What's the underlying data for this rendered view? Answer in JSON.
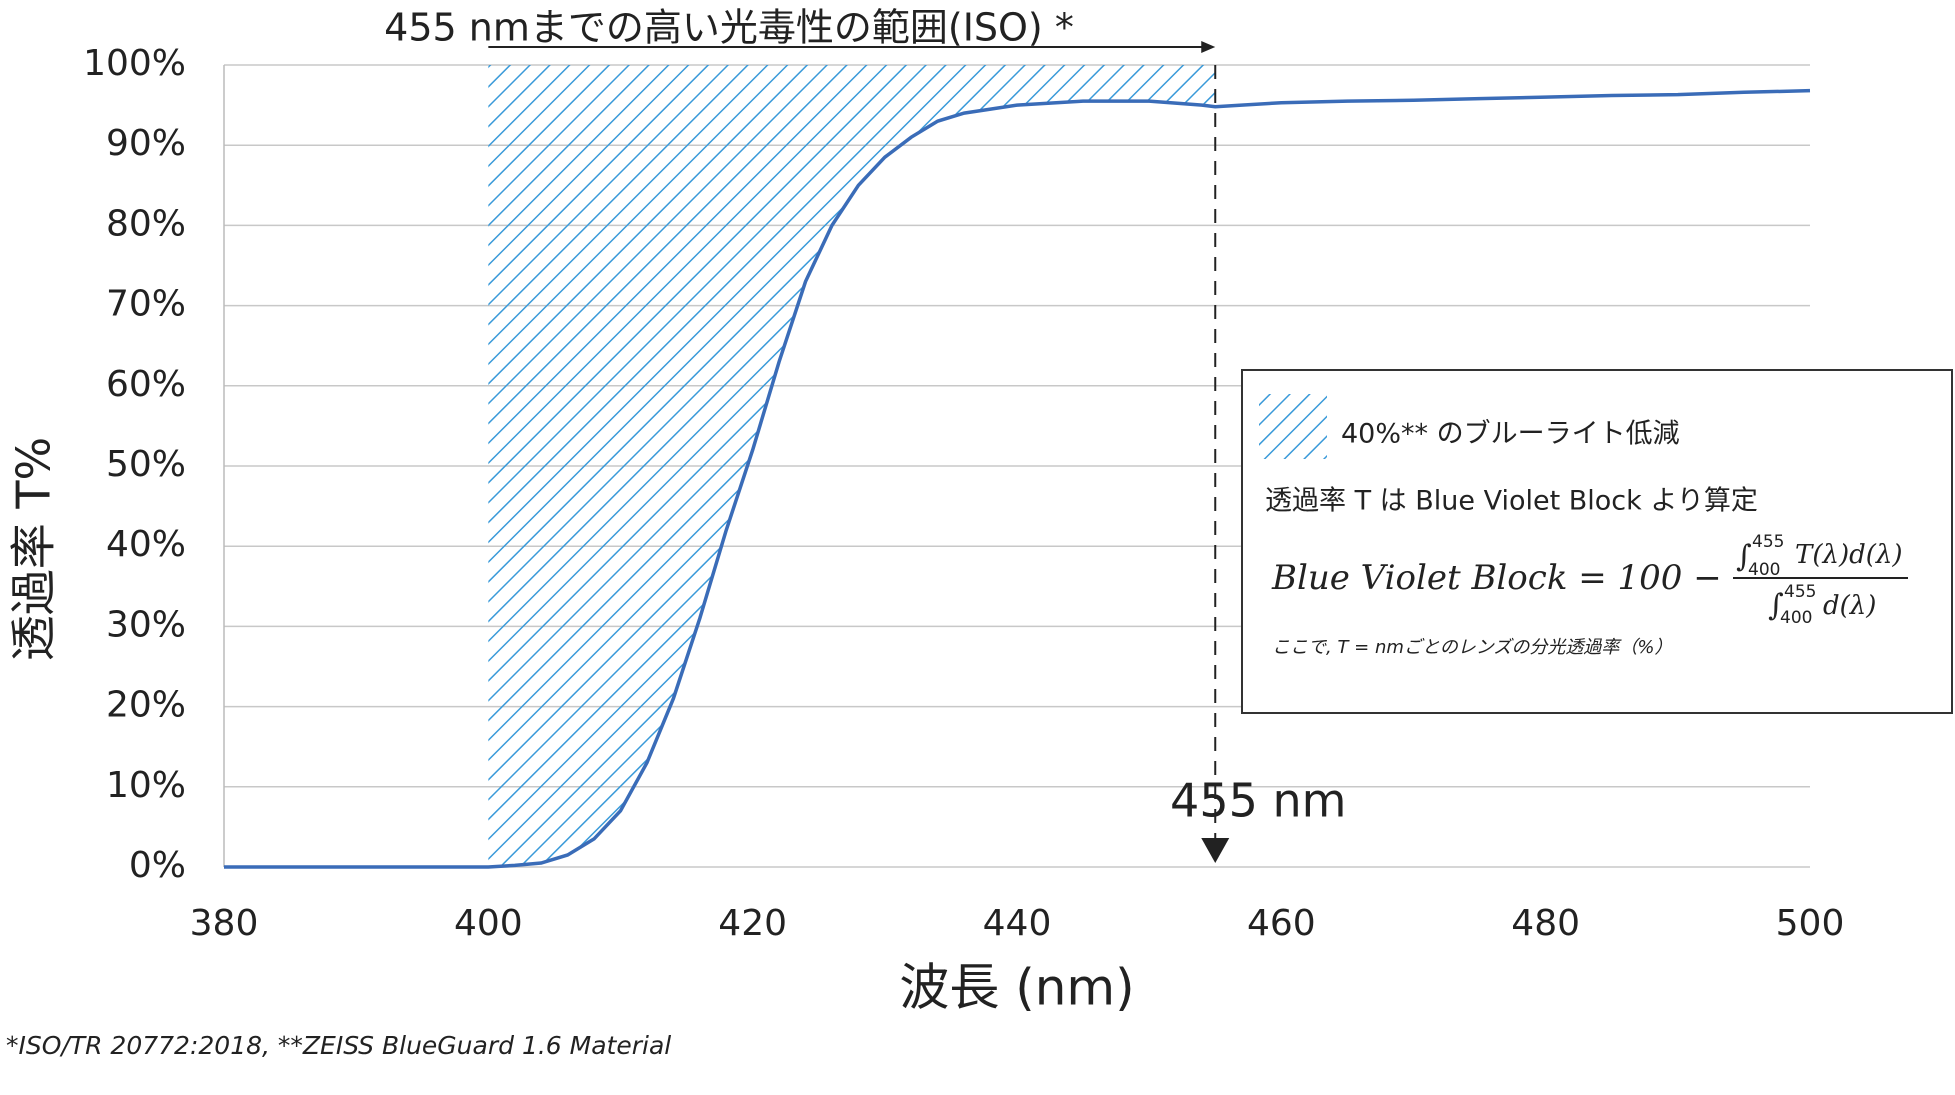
{
  "chart_data": {
    "type": "line",
    "title": "455 nmまでの高い光毒性の範囲(ISO) *",
    "xlabel": "波長 (nm)",
    "ylabel": "透過率 T%",
    "x": [
      380,
      385,
      390,
      395,
      400,
      402,
      404,
      406,
      408,
      410,
      412,
      414,
      416,
      418,
      420,
      422,
      424,
      426,
      428,
      430,
      432,
      434,
      436,
      438,
      440,
      445,
      450,
      454,
      455,
      457,
      460,
      465,
      470,
      475,
      480,
      485,
      490,
      495,
      500
    ],
    "values": [
      0,
      0,
      0,
      0,
      0,
      0.2,
      0.5,
      1.5,
      3.5,
      7,
      13,
      21,
      31,
      42,
      52,
      63,
      73,
      80,
      85,
      88.5,
      91,
      93,
      94,
      94.5,
      95,
      95.5,
      95.5,
      95,
      94.8,
      95,
      95.3,
      95.5,
      95.6,
      95.8,
      96,
      96.2,
      96.3,
      96.6,
      96.8
    ],
    "color": "#3a6cb8",
    "xlim": [
      380,
      500
    ],
    "ylim": [
      0,
      100
    ],
    "xticks": [
      380,
      400,
      420,
      440,
      460,
      480,
      500
    ],
    "yticks": [
      {
        "value": 0,
        "label": "0%"
      },
      {
        "value": 10,
        "label": "10%"
      },
      {
        "value": 20,
        "label": "20%"
      },
      {
        "value": 30,
        "label": "30%"
      },
      {
        "value": 40,
        "label": "40%"
      },
      {
        "value": 50,
        "label": "50%"
      },
      {
        "value": 60,
        "label": "60%"
      },
      {
        "value": 70,
        "label": "70%"
      },
      {
        "value": 80,
        "label": "80%"
      },
      {
        "value": 90,
        "label": "90%"
      },
      {
        "value": 100,
        "label": "100%"
      }
    ],
    "grid": true,
    "shade": {
      "from": 400,
      "to": 455,
      "color": "#3a9ad9",
      "label": "40%** のブルーライト低減"
    },
    "marker": {
      "x": 455,
      "label": "455 nm"
    },
    "formula": {
      "intro": "透過率 T は Blue Violet Block より算定",
      "lhs": "Blue Violet Block = 100 −",
      "integral": "∫",
      "upper": "455",
      "lower": "400",
      "num": "T(λ)d(λ)",
      "den": "d(λ)",
      "note": "ここで, T = nmごとのレンズの分光透過率（%）"
    },
    "footnote": "*ISO/TR 20772:2018, **ZEISS BlueGuard 1.6 Material"
  }
}
